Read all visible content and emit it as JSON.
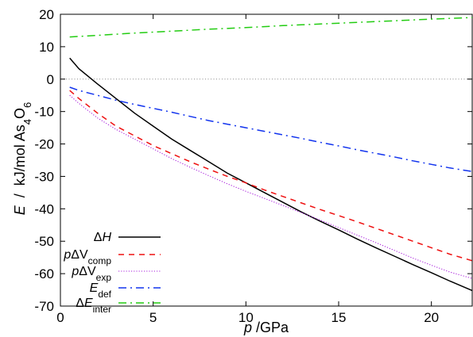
{
  "chart_data": {
    "type": "line",
    "xlabel": {
      "var": "p",
      "unit": " /GPa"
    },
    "ylabel": {
      "var": "E",
      "unit": "  /  kJ/mol As",
      "sub1": "4",
      "mid": "O",
      "sub2": "6"
    },
    "xlim": [
      0,
      22.2
    ],
    "ylim": [
      -70,
      20
    ],
    "xticks": [
      0,
      5,
      10,
      15,
      20
    ],
    "yticks": [
      -70,
      -60,
      -50,
      -40,
      -30,
      -20,
      -10,
      0,
      10,
      20
    ],
    "zero_line": {
      "value": 0,
      "color": "#888888",
      "style": "dotted"
    },
    "series": [
      {
        "name": "ΔH",
        "legend": {
          "pre": "Δ",
          "var": "H",
          "sub": ""
        },
        "color": "#000000",
        "dash": "",
        "x": [
          0.5,
          1,
          2,
          3,
          4,
          5,
          6,
          7,
          8,
          9,
          10,
          11,
          12,
          13,
          14,
          15,
          16,
          17,
          18,
          19,
          20,
          21,
          22.2
        ],
        "y": [
          6.5,
          3.2,
          -1.5,
          -6,
          -10.5,
          -14.5,
          -18.5,
          -22,
          -25.5,
          -29,
          -32,
          -35,
          -38,
          -41,
          -43.8,
          -46.5,
          -49.3,
          -52,
          -54.6,
          -57.2,
          -59.7,
          -62.3,
          -65.2
        ]
      },
      {
        "name": "pΔV_comp",
        "legend": {
          "pre": "",
          "var": "p",
          "mid": "ΔV",
          "sub": "comp"
        },
        "color": "#ee1111",
        "dash": "7,6",
        "x": [
          0.5,
          1,
          2,
          3,
          4,
          5,
          6,
          7,
          8,
          9,
          10,
          11,
          12,
          13,
          14,
          15,
          16,
          17,
          18,
          19,
          20,
          21,
          22.2
        ],
        "y": [
          -3.5,
          -6,
          -10.5,
          -14.5,
          -17.5,
          -20.5,
          -23,
          -25.5,
          -27.8,
          -30,
          -32,
          -34.2,
          -36.2,
          -38.2,
          -40.2,
          -42.1,
          -44,
          -46,
          -48,
          -50,
          -52,
          -54,
          -56
        ]
      },
      {
        "name": "pΔV_exp",
        "legend": {
          "pre": "",
          "var": "p",
          "mid": "ΔV",
          "sub": "exp"
        },
        "color": "#aa22dd",
        "dash": "1.2,2",
        "x": [
          0.5,
          1,
          2,
          3,
          4,
          5,
          6,
          7,
          8,
          9,
          10,
          11,
          12,
          13,
          14,
          15,
          16,
          17,
          18,
          19,
          20,
          21,
          22.2
        ],
        "y": [
          -5,
          -7.5,
          -12,
          -15.5,
          -18.5,
          -21.5,
          -24.5,
          -27.2,
          -29.8,
          -32.3,
          -34.6,
          -36.8,
          -39,
          -41.2,
          -43.5,
          -45.8,
          -48.1,
          -50.4,
          -52.8,
          -55.2,
          -57.4,
          -59.5,
          -61.5
        ]
      },
      {
        "name": "E_def",
        "legend": {
          "pre": "",
          "var": "E",
          "mid": "",
          "sub": "def"
        },
        "color": "#1133ee",
        "dash": "10,5,2,5",
        "x": [
          0.5,
          1,
          2,
          3,
          4,
          5,
          6,
          7,
          8,
          9,
          10,
          11,
          12,
          13,
          14,
          15,
          16,
          17,
          18,
          19,
          20,
          21,
          22.2
        ],
        "y": [
          -2.5,
          -3.5,
          -5,
          -6.5,
          -7.8,
          -9,
          -10.2,
          -11.5,
          -12.8,
          -13.9,
          -15,
          -16.1,
          -17.2,
          -18.3,
          -19.5,
          -20.6,
          -21.8,
          -22.9,
          -24,
          -25.2,
          -26.3,
          -27.4,
          -28.5
        ]
      },
      {
        "name": "ΔE_inter",
        "legend": {
          "pre": "Δ",
          "var": "E",
          "mid": "",
          "sub": "inter"
        },
        "color": "#22cc11",
        "dash": "10,5,2,5",
        "x": [
          0.5,
          2,
          4,
          6,
          8,
          10,
          12,
          14,
          16,
          18,
          20,
          22.2
        ],
        "y": [
          13,
          13.5,
          14.2,
          14.8,
          15.4,
          15.9,
          16.5,
          17,
          17.5,
          18,
          18.5,
          19
        ]
      }
    ]
  }
}
